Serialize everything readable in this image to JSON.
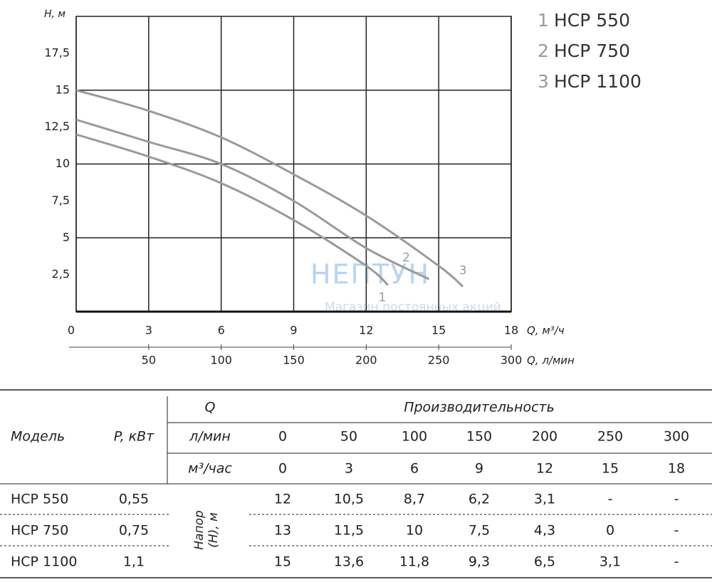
{
  "chart_data": {
    "type": "line",
    "y_label": "H, м",
    "x_label": "Q, м³/ч",
    "x2_label": "Q, л/мин",
    "xlim": [
      0,
      18
    ],
    "xticks": [
      0,
      3,
      6,
      9,
      12,
      15,
      18
    ],
    "x2lim": [
      0,
      300
    ],
    "x2ticks": [
      50,
      100,
      150,
      200,
      250,
      300
    ],
    "ylim": [
      0,
      20
    ],
    "yticks": [
      {
        "value": 2.5,
        "label": "2,5"
      },
      5,
      {
        "value": 7.5,
        "label": "7,5"
      },
      10,
      {
        "value": 12.5,
        "label": "12,5"
      },
      15,
      {
        "value": 17.5,
        "label": "17,5"
      }
    ],
    "grid": true,
    "series": [
      {
        "name": "HCP 550",
        "label": "1",
        "color": "#9a9a9a",
        "x": [
          0,
          3,
          6,
          9,
          12,
          12.9
        ],
        "values": [
          12,
          10.5,
          8.7,
          6.2,
          3.1,
          1.8
        ]
      },
      {
        "name": "HCP 750",
        "label": "2",
        "color": "#9a9a9a",
        "x": [
          0,
          3,
          6,
          9,
          12,
          14.6
        ],
        "values": [
          13,
          11.5,
          10,
          7.5,
          4.3,
          2.2
        ]
      },
      {
        "name": "HCP 1100",
        "label": "3",
        "color": "#9a9a9a",
        "x": [
          0,
          3,
          6,
          9,
          12,
          15,
          16
        ],
        "values": [
          15,
          13.6,
          11.8,
          9.3,
          6.5,
          3.1,
          1.7
        ]
      }
    ],
    "watermark": {
      "title": "НЕПТУН",
      "subtitle": "Магазин постоянных акций"
    }
  },
  "table": {
    "model_header": "Модель",
    "power_header": "P, кВт",
    "q_header": "Q",
    "perf_header": "Производительность",
    "head_header": "Напор (H), м",
    "unit_rows": [
      {
        "label": "л/мин",
        "values": [
          "0",
          "50",
          "100",
          "150",
          "200",
          "250",
          "300"
        ]
      },
      {
        "label": "м³/час",
        "values": [
          "0",
          "3",
          "6",
          "9",
          "12",
          "15",
          "18"
        ]
      }
    ],
    "rows": [
      {
        "model": "HCP 550",
        "power": "0,55",
        "values": [
          "12",
          "10,5",
          "8,7",
          "6,2",
          "3,1",
          "-",
          "-"
        ]
      },
      {
        "model": "HCP 750",
        "power": "0,75",
        "values": [
          "13",
          "11,5",
          "10",
          "7,5",
          "4,3",
          "0",
          "-"
        ]
      },
      {
        "model": "HCP 1100",
        "power": "1,1",
        "values": [
          "15",
          "13,6",
          "11,8",
          "9,3",
          "6,5",
          "3,1",
          "-"
        ]
      }
    ]
  }
}
